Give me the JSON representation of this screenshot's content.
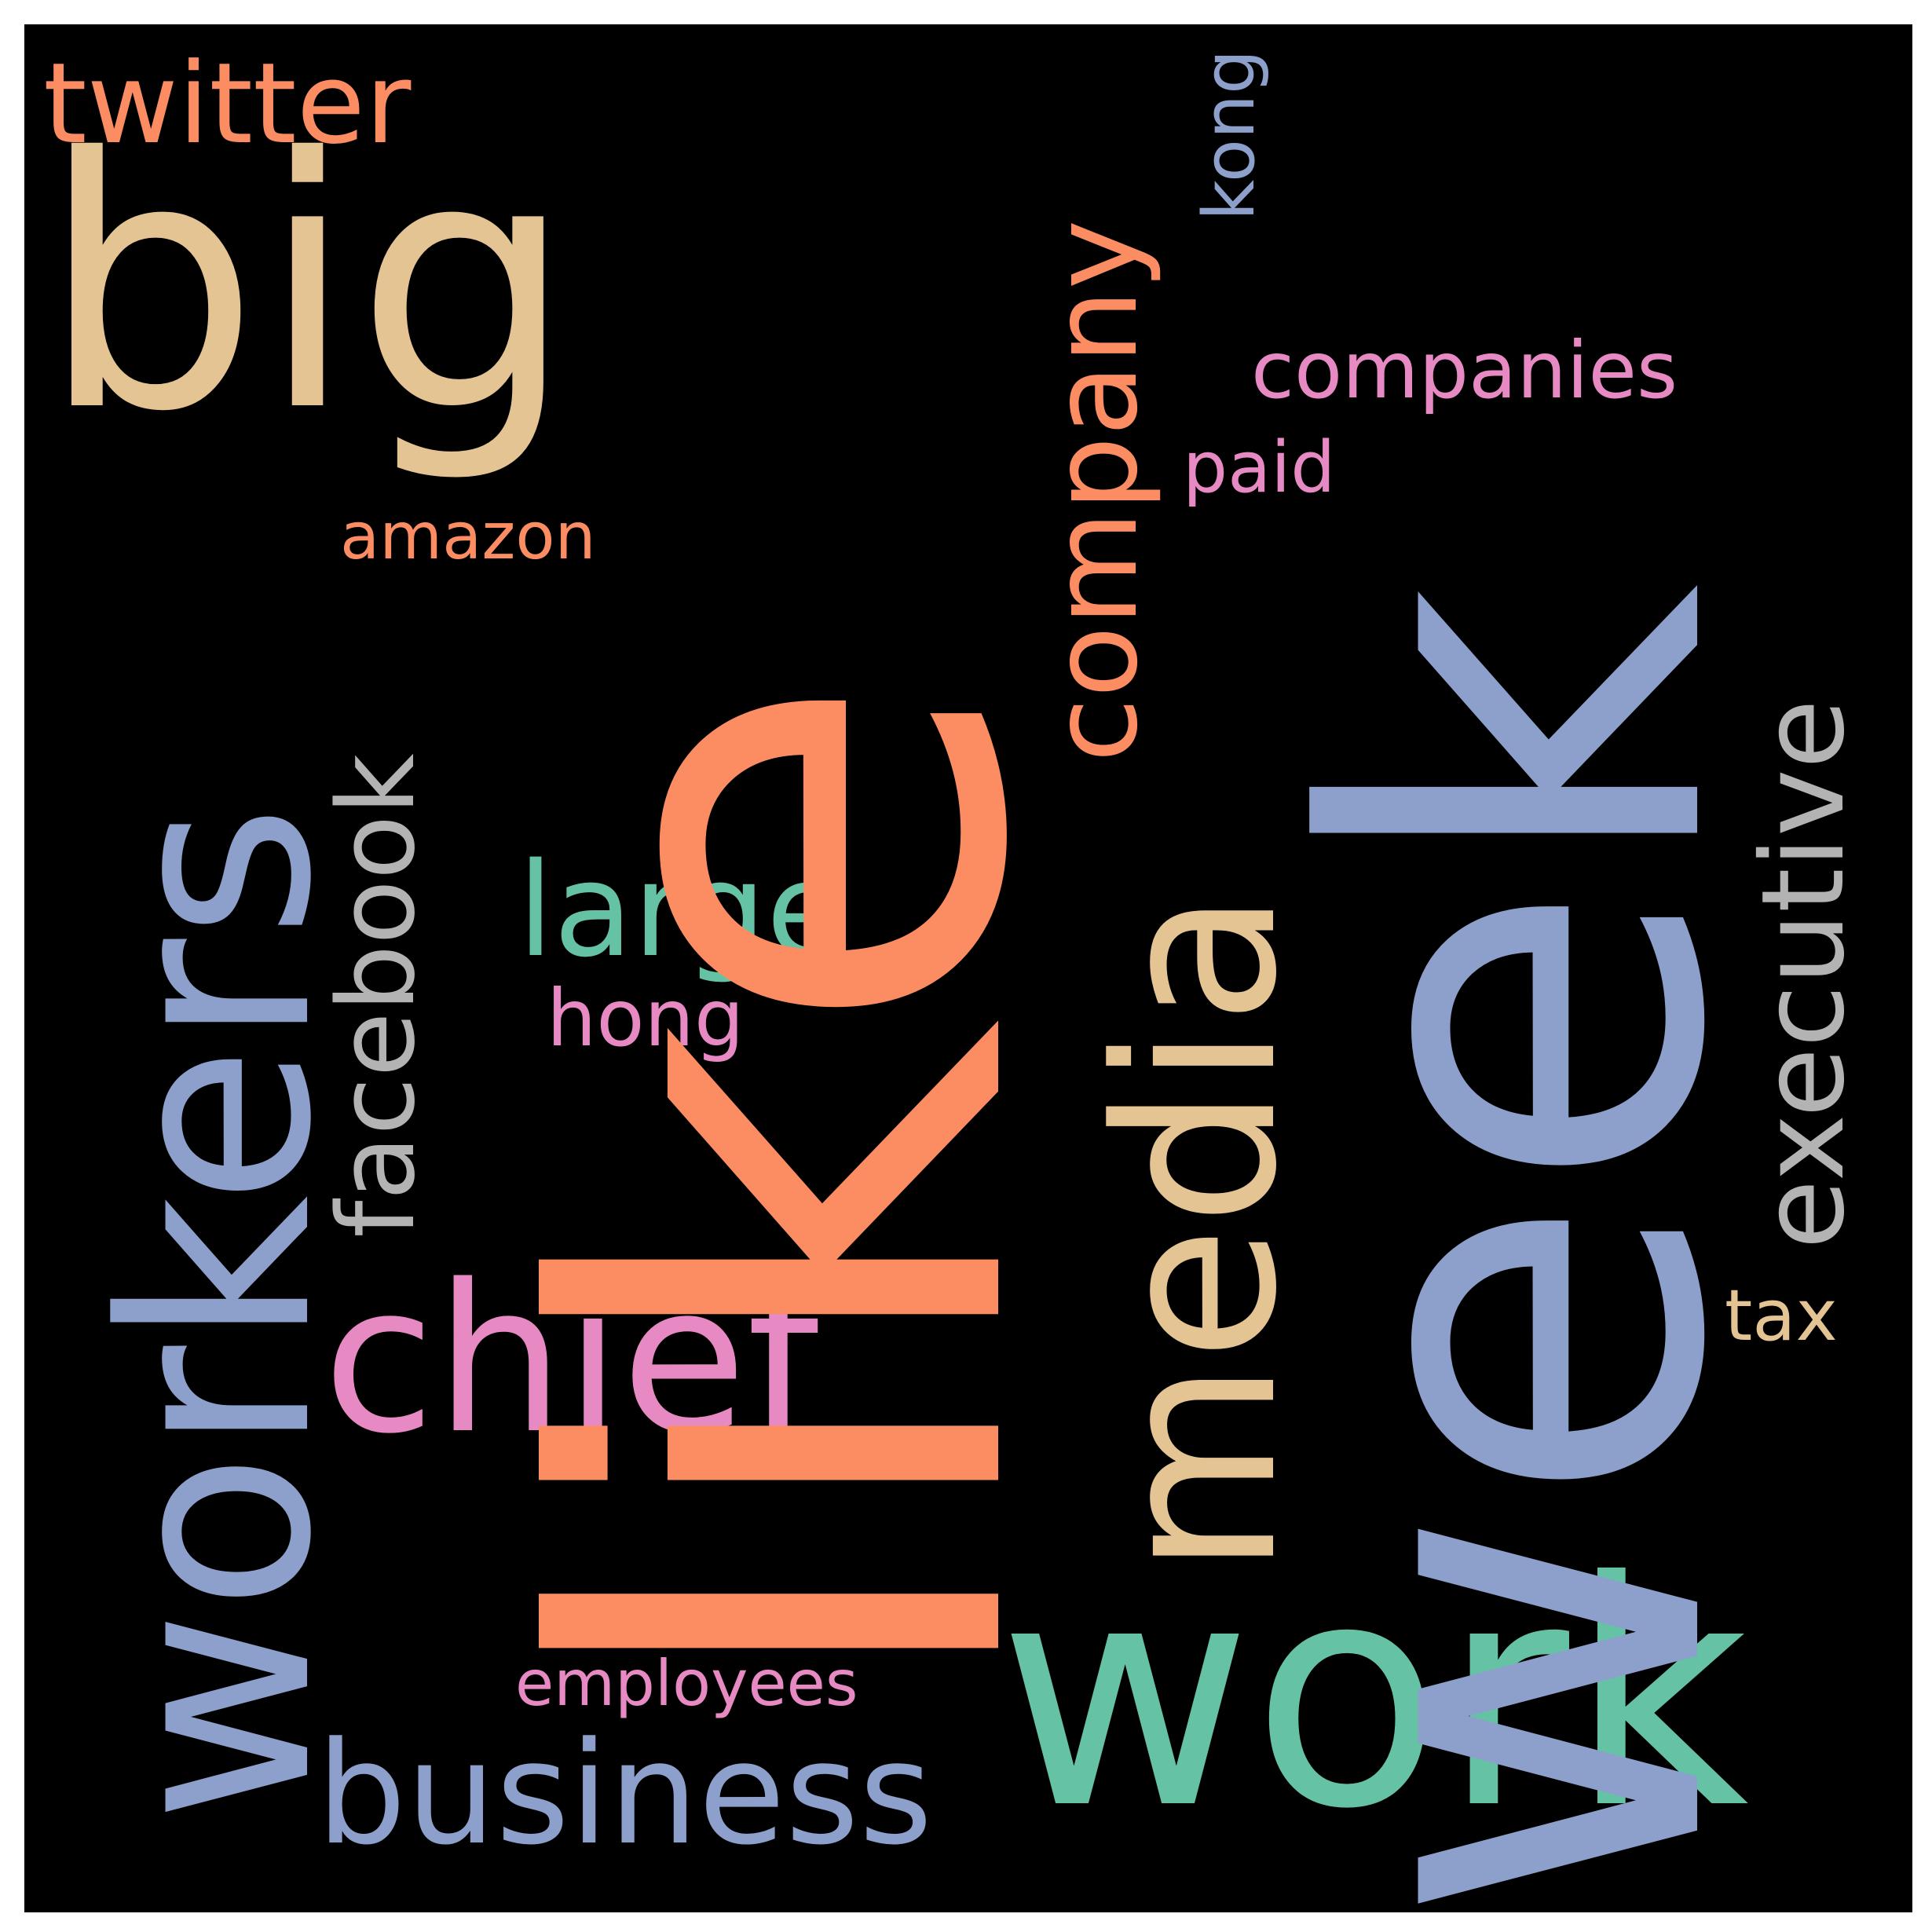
{
  "background": "#000000",
  "palette": {
    "orange": "#fc8d62",
    "blue": "#8da0cb",
    "green": "#66c2a5",
    "tan": "#e5c494",
    "pink": "#e78ac3",
    "gray": "#b3b3b3"
  },
  "words": {
    "like": "like",
    "week": "week",
    "work": "work",
    "workers": "workers",
    "big": "big",
    "media": "media",
    "chief": "chief",
    "business": "business",
    "company": "company",
    "facebook": "facebook",
    "executive": "executive",
    "large": "large",
    "twitter": "twitter",
    "companies": "companies",
    "hong": "hong",
    "amazon": "amazon",
    "paid": "paid",
    "kong": "kong",
    "tax": "tax",
    "employees": "employees"
  }
}
